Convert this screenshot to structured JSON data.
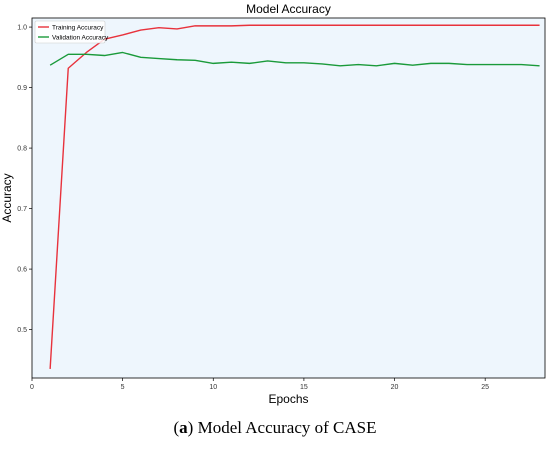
{
  "chart_data": {
    "type": "line",
    "title": "Model Accuracy",
    "xlabel": "Epochs",
    "ylabel": "Accuracy",
    "xlim": [
      0,
      28.3
    ],
    "ylim": [
      0.42,
      1.015
    ],
    "xticks": [
      0,
      5,
      10,
      15,
      20,
      25
    ],
    "yticks": [
      0.5,
      0.6,
      0.7,
      0.8,
      0.9,
      1.0
    ],
    "grid": false,
    "legend_position": "top-left",
    "background_color": "#eef6fd",
    "series": [
      {
        "name": "Training Accuracy",
        "color": "#e8323c",
        "x": [
          1,
          2,
          3,
          4,
          5,
          6,
          7,
          8,
          9,
          10,
          11,
          12,
          13,
          14,
          15,
          16,
          17,
          18,
          19,
          20,
          21,
          22,
          23,
          24,
          25,
          26,
          27,
          28
        ],
        "values": [
          0.435,
          0.932,
          0.958,
          0.98,
          0.987,
          0.995,
          0.999,
          0.997,
          1.002,
          1.002,
          1.002,
          1.003,
          1.003,
          1.003,
          1.003,
          1.003,
          1.003,
          1.003,
          1.003,
          1.003,
          1.003,
          1.003,
          1.003,
          1.003,
          1.003,
          1.003,
          1.003,
          1.003
        ]
      },
      {
        "name": "Validation Accuracy",
        "color": "#1a9a3a",
        "x": [
          1,
          2,
          3,
          4,
          5,
          6,
          7,
          8,
          9,
          10,
          11,
          12,
          13,
          14,
          15,
          16,
          17,
          18,
          19,
          20,
          21,
          22,
          23,
          24,
          25,
          26,
          27,
          28
        ],
        "values": [
          0.937,
          0.955,
          0.955,
          0.953,
          0.958,
          0.95,
          0.948,
          0.946,
          0.945,
          0.94,
          0.942,
          0.94,
          0.944,
          0.941,
          0.941,
          0.939,
          0.936,
          0.938,
          0.936,
          0.94,
          0.937,
          0.94,
          0.94,
          0.938,
          0.938,
          0.938,
          0.938,
          0.936
        ]
      }
    ]
  },
  "caption": {
    "label": "a",
    "text": " Model Accuracy of CASE"
  }
}
